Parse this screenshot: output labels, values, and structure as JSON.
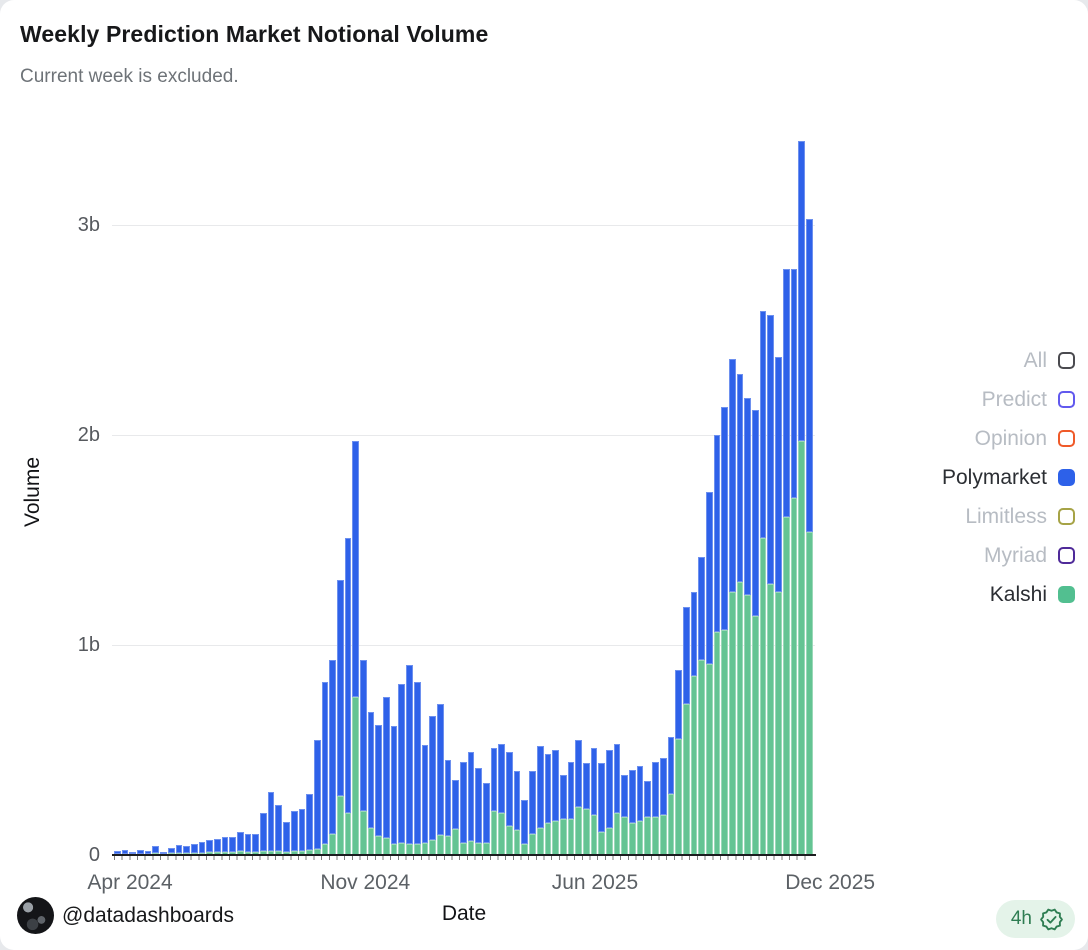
{
  "header": {
    "title": "Weekly Prediction Market Notional Volume",
    "subtitle": "Current week is excluded."
  },
  "chart_data": {
    "type": "bar",
    "stacked": true,
    "title": "Weekly Prediction Market Notional Volume",
    "subtitle": "Current week is excluded.",
    "xlabel": "Date",
    "ylabel": "Volume",
    "unit": "billions",
    "ylim": [
      0,
      3.5
    ],
    "grid": true,
    "legend_position": "right",
    "y_ticks": [
      {
        "label": "0",
        "value": 0
      },
      {
        "label": "1b",
        "value": 1
      },
      {
        "label": "2b",
        "value": 2
      },
      {
        "label": "3b",
        "value": 3
      }
    ],
    "x_ticks": [
      {
        "label": "Apr 2024",
        "pct": 2.3
      },
      {
        "label": "Nov 2024",
        "pct": 36.0
      },
      {
        "label": "Jun 2025",
        "pct": 68.9
      },
      {
        "label": "Dec 2025",
        "pct": 102.6
      }
    ],
    "series": [
      {
        "name": "Polymarket",
        "color": "#2e61e9",
        "stack_order": "top",
        "values": [
          0.015,
          0.02,
          0.01,
          0.02,
          0.015,
          0.032,
          0.01,
          0.022,
          0.04,
          0.032,
          0.045,
          0.05,
          0.058,
          0.063,
          0.07,
          0.07,
          0.09,
          0.085,
          0.085,
          0.18,
          0.28,
          0.22,
          0.145,
          0.19,
          0.2,
          0.265,
          0.52,
          0.77,
          0.83,
          1.03,
          1.31,
          1.22,
          0.72,
          0.55,
          0.53,
          0.67,
          0.56,
          0.755,
          0.85,
          0.77,
          0.465,
          0.59,
          0.625,
          0.36,
          0.235,
          0.385,
          0.425,
          0.355,
          0.285,
          0.3,
          0.33,
          0.35,
          0.28,
          0.21,
          0.3,
          0.39,
          0.33,
          0.34,
          0.21,
          0.27,
          0.32,
          0.22,
          0.32,
          0.33,
          0.37,
          0.33,
          0.2,
          0.25,
          0.26,
          0.17,
          0.26,
          0.27,
          0.27,
          0.33,
          0.46,
          0.4,
          0.49,
          0.82,
          0.94,
          1.06,
          1.11,
          0.99,
          0.94,
          0.98,
          1.08,
          1.28,
          1.12,
          1.18,
          1.09,
          1.43,
          1.49
        ]
      },
      {
        "name": "Kalshi",
        "color": "#64c493",
        "stack_order": "bottom",
        "values": [
          0.005,
          0.005,
          0.005,
          0.005,
          0.005,
          0.008,
          0.005,
          0.008,
          0.01,
          0.008,
          0.01,
          0.01,
          0.012,
          0.012,
          0.015,
          0.015,
          0.02,
          0.015,
          0.015,
          0.02,
          0.02,
          0.02,
          0.015,
          0.02,
          0.02,
          0.025,
          0.03,
          0.05,
          0.1,
          0.28,
          0.2,
          0.75,
          0.21,
          0.13,
          0.09,
          0.08,
          0.05,
          0.055,
          0.05,
          0.05,
          0.055,
          0.07,
          0.095,
          0.09,
          0.125,
          0.055,
          0.065,
          0.055,
          0.055,
          0.21,
          0.2,
          0.14,
          0.12,
          0.05,
          0.1,
          0.13,
          0.15,
          0.16,
          0.17,
          0.17,
          0.23,
          0.22,
          0.19,
          0.11,
          0.13,
          0.2,
          0.18,
          0.15,
          0.16,
          0.18,
          0.18,
          0.19,
          0.29,
          0.55,
          0.72,
          0.85,
          0.93,
          0.91,
          1.06,
          1.07,
          1.25,
          1.3,
          1.24,
          1.14,
          1.51,
          1.29,
          1.25,
          1.61,
          1.7,
          1.97,
          1.54
        ]
      }
    ]
  },
  "legend": {
    "items": [
      {
        "label": "All",
        "color": "#4a4a4f",
        "selected": false
      },
      {
        "label": "Predict",
        "color": "#6159ee",
        "selected": false
      },
      {
        "label": "Opinion",
        "color": "#ef5a29",
        "selected": false
      },
      {
        "label": "Polymarket",
        "color": "#2d61e9",
        "selected": true
      },
      {
        "label": "Limitless",
        "color": "#a6a346",
        "selected": false
      },
      {
        "label": "Myriad",
        "color": "#4f2a99",
        "selected": false
      },
      {
        "label": "Kalshi",
        "color": "#52bf90",
        "selected": true
      }
    ]
  },
  "footer": {
    "handle": "@datadashboards",
    "badge_text": "4h"
  }
}
